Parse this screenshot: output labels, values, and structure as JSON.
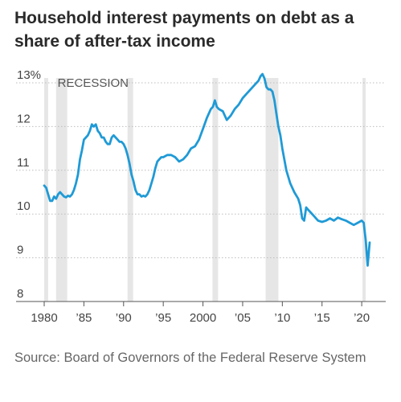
{
  "chart_data": {
    "type": "line",
    "title": "Household interest payments on debt as a share of after-tax income",
    "subtitle": "",
    "xlabel": "",
    "ylabel": "",
    "x_range": [
      1980,
      2021
    ],
    "ylim": [
      8,
      13.2
    ],
    "y_ticks": [
      {
        "value": 13,
        "label": "13%"
      },
      {
        "value": 12,
        "label": "12"
      },
      {
        "value": 11,
        "label": "11"
      },
      {
        "value": 10,
        "label": "10"
      },
      {
        "value": 9,
        "label": "9"
      },
      {
        "value": 8,
        "label": "8"
      }
    ],
    "x_ticks": [
      {
        "value": 1980,
        "label": "1980"
      },
      {
        "value": 1985,
        "label": "’85"
      },
      {
        "value": 1990,
        "label": "’90"
      },
      {
        "value": 1995,
        "label": "’95"
      },
      {
        "value": 2000,
        "label": "2000"
      },
      {
        "value": 2005,
        "label": "’05"
      },
      {
        "value": 2010,
        "label": "’10"
      },
      {
        "value": 2015,
        "label": "’15"
      },
      {
        "value": 2020,
        "label": "’20"
      }
    ],
    "grid": "horizontal dotted",
    "recession_label": "RECESSION",
    "recessions": [
      {
        "start": 1980.0,
        "end": 1980.5
      },
      {
        "start": 1981.5,
        "end": 1982.9
      },
      {
        "start": 1990.5,
        "end": 1991.2
      },
      {
        "start": 2001.2,
        "end": 2001.9
      },
      {
        "start": 2007.9,
        "end": 2009.5
      },
      {
        "start": 2020.1,
        "end": 2020.5
      }
    ],
    "series_color": "#1f9ad6",
    "recession_color": "#e6e6e6",
    "series": [
      {
        "name": "",
        "x": [
          1980.0,
          1980.25,
          1980.5,
          1980.75,
          1981.0,
          1981.25,
          1981.5,
          1981.75,
          1982.0,
          1982.25,
          1982.5,
          1982.75,
          1983.0,
          1983.25,
          1983.5,
          1983.75,
          1984.0,
          1984.25,
          1984.5,
          1984.75,
          1985.0,
          1985.25,
          1985.5,
          1985.75,
          1986.0,
          1986.25,
          1986.5,
          1986.75,
          1987.0,
          1987.25,
          1987.5,
          1987.75,
          1988.0,
          1988.25,
          1988.5,
          1988.75,
          1989.0,
          1989.25,
          1989.5,
          1989.75,
          1990.0,
          1990.25,
          1990.5,
          1990.75,
          1991.0,
          1991.25,
          1991.5,
          1991.75,
          1992.0,
          1992.25,
          1992.5,
          1992.75,
          1993.0,
          1993.25,
          1993.5,
          1993.75,
          1994.0,
          1994.25,
          1994.5,
          1994.75,
          1995.0,
          1995.5,
          1996.0,
          1996.5,
          1997.0,
          1997.5,
          1998.0,
          1998.5,
          1999.0,
          1999.5,
          2000.0,
          2000.5,
          2001.0,
          2001.25,
          2001.5,
          2001.75,
          2002.0,
          2002.5,
          2003.0,
          2003.5,
          2004.0,
          2004.5,
          2005.0,
          2005.5,
          2006.0,
          2006.5,
          2007.0,
          2007.25,
          2007.5,
          2007.75,
          2008.0,
          2008.25,
          2008.5,
          2008.75,
          2009.0,
          2009.25,
          2009.5,
          2009.75,
          2010.0,
          2010.5,
          2011.0,
          2011.5,
          2012.0,
          2012.25,
          2012.5,
          2012.75,
          2013.0,
          2013.25,
          2013.5,
          2014.0,
          2014.5,
          2015.0,
          2015.5,
          2016.0,
          2016.5,
          2017.0,
          2017.5,
          2018.0,
          2018.5,
          2019.0,
          2019.5,
          2020.0,
          2020.25,
          2020.5,
          2020.75,
          2021.0
        ],
        "values": [
          10.65,
          10.6,
          10.45,
          10.3,
          10.3,
          10.4,
          10.35,
          10.45,
          10.5,
          10.45,
          10.4,
          10.38,
          10.42,
          10.4,
          10.45,
          10.55,
          10.7,
          10.9,
          11.25,
          11.45,
          11.7,
          11.75,
          11.8,
          11.9,
          12.05,
          12.0,
          12.05,
          11.9,
          11.85,
          11.75,
          11.75,
          11.65,
          11.6,
          11.6,
          11.75,
          11.8,
          11.75,
          11.7,
          11.65,
          11.65,
          11.6,
          11.5,
          11.35,
          11.15,
          10.9,
          10.75,
          10.55,
          10.45,
          10.45,
          10.4,
          10.42,
          10.4,
          10.45,
          10.55,
          10.7,
          10.85,
          11.05,
          11.2,
          11.25,
          11.3,
          11.3,
          11.35,
          11.35,
          11.3,
          11.2,
          11.25,
          11.35,
          11.5,
          11.55,
          11.7,
          11.95,
          12.2,
          12.4,
          12.45,
          12.6,
          12.45,
          12.4,
          12.35,
          12.15,
          12.25,
          12.4,
          12.5,
          12.65,
          12.75,
          12.85,
          12.95,
          13.05,
          13.15,
          13.2,
          13.1,
          12.9,
          12.85,
          12.85,
          12.8,
          12.6,
          12.3,
          12.0,
          11.8,
          11.5,
          11.0,
          10.7,
          10.5,
          10.35,
          10.2,
          9.9,
          9.85,
          10.15,
          10.1,
          10.05,
          9.95,
          9.85,
          9.82,
          9.85,
          9.9,
          9.85,
          9.92,
          9.88,
          9.85,
          9.8,
          9.75,
          9.8,
          9.85,
          9.8,
          9.4,
          8.82,
          9.35
        ]
      }
    ]
  },
  "source": "Source: Board of Governors of the Federal Reserve System"
}
